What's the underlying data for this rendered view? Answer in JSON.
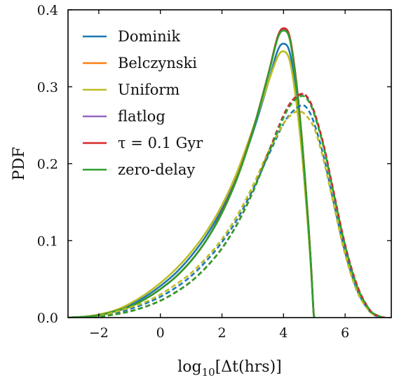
{
  "chart_data": {
    "type": "line",
    "title": "",
    "xlabel": "log10[Δt(hrs)]",
    "ylabel": "PDF",
    "xlim": [
      -3.0,
      7.5
    ],
    "ylim": [
      0.0,
      0.4
    ],
    "xticks": [
      -2,
      0,
      2,
      4,
      6
    ],
    "yticks": [
      0.0,
      0.1,
      0.2,
      0.3,
      0.4
    ],
    "x_tick_labels": [
      "−2",
      "0",
      "2",
      "4",
      "6"
    ],
    "y_tick_labels": [
      "0.0",
      "0.1",
      "0.2",
      "0.3",
      "0.4"
    ],
    "grid": false,
    "legend_position": "upper-left",
    "line_styles": {
      "solid": "solid",
      "dashed": "dashed"
    },
    "legend": [
      {
        "name": "Dominik",
        "color": "#1f77b4"
      },
      {
        "name": "Belczynski",
        "color": "#ff7f0e"
      },
      {
        "name": "Uniform",
        "color": "#bcbd22"
      },
      {
        "name": "flatlog",
        "color": "#9467bd"
      },
      {
        "name": "τ = 0.1 Gyr",
        "color": "#d62728"
      },
      {
        "name": "zero-delay",
        "color": "#2ca02c"
      }
    ],
    "series": [
      {
        "name": "Dominik",
        "style": "solid",
        "color": "#1f77b4",
        "points": [
          [
            -3,
            0
          ],
          [
            -2.5,
            0.001
          ],
          [
            -2,
            0.003
          ],
          [
            -1.5,
            0.008
          ],
          [
            -1,
            0.016
          ],
          [
            -0.5,
            0.027
          ],
          [
            0,
            0.041
          ],
          [
            0.5,
            0.058
          ],
          [
            1,
            0.08
          ],
          [
            1.5,
            0.107
          ],
          [
            2,
            0.141
          ],
          [
            2.5,
            0.184
          ],
          [
            3,
            0.24
          ],
          [
            3.5,
            0.305
          ],
          [
            3.8,
            0.346
          ],
          [
            4,
            0.356
          ],
          [
            4.2,
            0.345
          ],
          [
            4.4,
            0.296
          ],
          [
            4.6,
            0.22
          ],
          [
            4.8,
            0.12
          ],
          [
            4.9,
            0.06
          ],
          [
            4.97,
            0.01
          ],
          [
            5,
            0
          ]
        ]
      },
      {
        "name": "Belczynski",
        "style": "solid",
        "color": "#ff7f0e",
        "points": [
          [
            -3,
            0
          ],
          [
            -2.5,
            0.001
          ],
          [
            -2,
            0.003
          ],
          [
            -1.5,
            0.008
          ],
          [
            -1,
            0.014
          ],
          [
            -0.5,
            0.024
          ],
          [
            0,
            0.037
          ],
          [
            0.5,
            0.053
          ],
          [
            1,
            0.074
          ],
          [
            1.5,
            0.101
          ],
          [
            2,
            0.136
          ],
          [
            2.5,
            0.182
          ],
          [
            3,
            0.242
          ],
          [
            3.5,
            0.315
          ],
          [
            3.8,
            0.362
          ],
          [
            4,
            0.374
          ],
          [
            4.2,
            0.363
          ],
          [
            4.4,
            0.31
          ],
          [
            4.6,
            0.23
          ],
          [
            4.8,
            0.125
          ],
          [
            4.9,
            0.063
          ],
          [
            4.97,
            0.01
          ],
          [
            5,
            0
          ]
        ]
      },
      {
        "name": "Uniform",
        "style": "solid",
        "color": "#bcbd22",
        "points": [
          [
            -3,
            0
          ],
          [
            -2.5,
            0.001
          ],
          [
            -2,
            0.004
          ],
          [
            -1.5,
            0.009
          ],
          [
            -1,
            0.018
          ],
          [
            -0.5,
            0.03
          ],
          [
            0,
            0.045
          ],
          [
            0.5,
            0.063
          ],
          [
            1,
            0.085
          ],
          [
            1.5,
            0.112
          ],
          [
            2,
            0.146
          ],
          [
            2.5,
            0.19
          ],
          [
            3,
            0.245
          ],
          [
            3.5,
            0.305
          ],
          [
            3.8,
            0.338
          ],
          [
            4,
            0.346
          ],
          [
            4.2,
            0.334
          ],
          [
            4.4,
            0.285
          ],
          [
            4.6,
            0.212
          ],
          [
            4.8,
            0.115
          ],
          [
            4.9,
            0.058
          ],
          [
            4.97,
            0.01
          ],
          [
            5,
            0
          ]
        ]
      },
      {
        "name": "flatlog",
        "style": "solid",
        "color": "#9467bd",
        "points": [
          [
            -3,
            0
          ],
          [
            -2.5,
            0.001
          ],
          [
            -2,
            0.003
          ],
          [
            -1.5,
            0.008
          ],
          [
            -1,
            0.014
          ],
          [
            -0.5,
            0.024
          ],
          [
            0,
            0.037
          ],
          [
            0.5,
            0.053
          ],
          [
            1,
            0.074
          ],
          [
            1.5,
            0.101
          ],
          [
            2,
            0.136
          ],
          [
            2.5,
            0.182
          ],
          [
            3,
            0.242
          ],
          [
            3.5,
            0.315
          ],
          [
            3.8,
            0.362
          ],
          [
            4,
            0.374
          ],
          [
            4.2,
            0.363
          ],
          [
            4.4,
            0.31
          ],
          [
            4.6,
            0.23
          ],
          [
            4.8,
            0.125
          ],
          [
            4.9,
            0.063
          ],
          [
            4.97,
            0.01
          ],
          [
            5,
            0
          ]
        ]
      },
      {
        "name": "τ = 0.1 Gyr",
        "style": "solid",
        "color": "#d62728",
        "points": [
          [
            -3,
            0
          ],
          [
            -2.5,
            0.001
          ],
          [
            -2,
            0.003
          ],
          [
            -1.5,
            0.008
          ],
          [
            -1,
            0.014
          ],
          [
            -0.5,
            0.024
          ],
          [
            0,
            0.037
          ],
          [
            0.5,
            0.053
          ],
          [
            1,
            0.074
          ],
          [
            1.5,
            0.101
          ],
          [
            2,
            0.137
          ],
          [
            2.5,
            0.183
          ],
          [
            3,
            0.243
          ],
          [
            3.5,
            0.316
          ],
          [
            3.8,
            0.364
          ],
          [
            4,
            0.376
          ],
          [
            4.2,
            0.365
          ],
          [
            4.4,
            0.312
          ],
          [
            4.6,
            0.231
          ],
          [
            4.8,
            0.126
          ],
          [
            4.9,
            0.063
          ],
          [
            4.97,
            0.01
          ],
          [
            5,
            0
          ]
        ]
      },
      {
        "name": "zero-delay",
        "style": "solid",
        "color": "#2ca02c",
        "points": [
          [
            -3,
            0
          ],
          [
            -2.5,
            0.001
          ],
          [
            -2,
            0.003
          ],
          [
            -1.5,
            0.008
          ],
          [
            -1,
            0.014
          ],
          [
            -0.5,
            0.024
          ],
          [
            0,
            0.037
          ],
          [
            0.5,
            0.053
          ],
          [
            1,
            0.074
          ],
          [
            1.5,
            0.101
          ],
          [
            2,
            0.136
          ],
          [
            2.5,
            0.182
          ],
          [
            3,
            0.242
          ],
          [
            3.5,
            0.315
          ],
          [
            3.8,
            0.362
          ],
          [
            4,
            0.373
          ],
          [
            4.2,
            0.362
          ],
          [
            4.4,
            0.309
          ],
          [
            4.6,
            0.229
          ],
          [
            4.8,
            0.124
          ],
          [
            4.9,
            0.062
          ],
          [
            4.97,
            0.01
          ],
          [
            5,
            0
          ]
        ]
      },
      {
        "name": "Dominik",
        "style": "dashed",
        "color": "#1f77b4",
        "points": [
          [
            -2.2,
            0
          ],
          [
            -1.5,
            0.006
          ],
          [
            -1,
            0.011
          ],
          [
            -0.5,
            0.018
          ],
          [
            0,
            0.027
          ],
          [
            0.5,
            0.039
          ],
          [
            1,
            0.054
          ],
          [
            1.5,
            0.074
          ],
          [
            2,
            0.098
          ],
          [
            2.5,
            0.128
          ],
          [
            3,
            0.166
          ],
          [
            3.5,
            0.21
          ],
          [
            4,
            0.252
          ],
          [
            4.3,
            0.268
          ],
          [
            4.6,
            0.276
          ],
          [
            4.8,
            0.27
          ],
          [
            5,
            0.252
          ],
          [
            5.3,
            0.21
          ],
          [
            5.6,
            0.155
          ],
          [
            6,
            0.085
          ],
          [
            6.4,
            0.035
          ],
          [
            6.8,
            0.008
          ],
          [
            7.1,
            0.001
          ],
          [
            7.3,
            0
          ]
        ]
      },
      {
        "name": "Belczynski",
        "style": "dashed",
        "color": "#ff7f0e",
        "points": [
          [
            -2.2,
            0
          ],
          [
            -1.5,
            0.004
          ],
          [
            -1,
            0.008
          ],
          [
            -0.5,
            0.014
          ],
          [
            0,
            0.022
          ],
          [
            0.5,
            0.033
          ],
          [
            1,
            0.047
          ],
          [
            1.5,
            0.066
          ],
          [
            2,
            0.09
          ],
          [
            2.5,
            0.122
          ],
          [
            3,
            0.163
          ],
          [
            3.5,
            0.213
          ],
          [
            4,
            0.262
          ],
          [
            4.3,
            0.282
          ],
          [
            4.6,
            0.29
          ],
          [
            4.8,
            0.284
          ],
          [
            5,
            0.266
          ],
          [
            5.3,
            0.224
          ],
          [
            5.6,
            0.168
          ],
          [
            6,
            0.094
          ],
          [
            6.4,
            0.04
          ],
          [
            6.8,
            0.01
          ],
          [
            7.1,
            0.002
          ],
          [
            7.3,
            0
          ]
        ]
      },
      {
        "name": "Uniform",
        "style": "dashed",
        "color": "#bcbd22",
        "points": [
          [
            -2.2,
            0
          ],
          [
            -1.5,
            0.007
          ],
          [
            -1,
            0.013
          ],
          [
            -0.5,
            0.02
          ],
          [
            0,
            0.03
          ],
          [
            0.5,
            0.043
          ],
          [
            1,
            0.058
          ],
          [
            1.5,
            0.078
          ],
          [
            2,
            0.102
          ],
          [
            2.5,
            0.133
          ],
          [
            3,
            0.171
          ],
          [
            3.5,
            0.215
          ],
          [
            4,
            0.252
          ],
          [
            4.3,
            0.265
          ],
          [
            4.5,
            0.268
          ],
          [
            4.7,
            0.264
          ],
          [
            5,
            0.246
          ],
          [
            5.3,
            0.205
          ],
          [
            5.6,
            0.152
          ],
          [
            6,
            0.082
          ],
          [
            6.4,
            0.033
          ],
          [
            6.8,
            0.008
          ],
          [
            7.1,
            0.001
          ],
          [
            7.3,
            0
          ]
        ]
      },
      {
        "name": "flatlog",
        "style": "dashed",
        "color": "#9467bd",
        "points": [
          [
            -2.2,
            0
          ],
          [
            -1.5,
            0.004
          ],
          [
            -1,
            0.008
          ],
          [
            -0.5,
            0.014
          ],
          [
            0,
            0.022
          ],
          [
            0.5,
            0.033
          ],
          [
            1,
            0.047
          ],
          [
            1.5,
            0.066
          ],
          [
            2,
            0.09
          ],
          [
            2.5,
            0.122
          ],
          [
            3,
            0.163
          ],
          [
            3.5,
            0.213
          ],
          [
            4,
            0.262
          ],
          [
            4.3,
            0.282
          ],
          [
            4.6,
            0.29
          ],
          [
            4.8,
            0.284
          ],
          [
            5,
            0.266
          ],
          [
            5.3,
            0.224
          ],
          [
            5.6,
            0.168
          ],
          [
            6,
            0.094
          ],
          [
            6.4,
            0.04
          ],
          [
            6.8,
            0.01
          ],
          [
            7.1,
            0.002
          ],
          [
            7.3,
            0
          ]
        ]
      },
      {
        "name": "τ = 0.1 Gyr",
        "style": "dashed",
        "color": "#d62728",
        "points": [
          [
            -2.2,
            0
          ],
          [
            -1.5,
            0.004
          ],
          [
            -1,
            0.008
          ],
          [
            -0.5,
            0.014
          ],
          [
            0,
            0.022
          ],
          [
            0.5,
            0.033
          ],
          [
            1,
            0.047
          ],
          [
            1.5,
            0.066
          ],
          [
            2,
            0.09
          ],
          [
            2.5,
            0.122
          ],
          [
            3,
            0.163
          ],
          [
            3.5,
            0.214
          ],
          [
            4,
            0.263
          ],
          [
            4.3,
            0.283
          ],
          [
            4.6,
            0.291
          ],
          [
            4.8,
            0.285
          ],
          [
            5,
            0.267
          ],
          [
            5.3,
            0.225
          ],
          [
            5.6,
            0.169
          ],
          [
            6,
            0.095
          ],
          [
            6.4,
            0.041
          ],
          [
            6.8,
            0.01
          ],
          [
            7.1,
            0.002
          ],
          [
            7.3,
            0
          ]
        ]
      },
      {
        "name": "zero-delay",
        "style": "dashed",
        "color": "#2ca02c",
        "points": [
          [
            -2.2,
            0
          ],
          [
            -1.5,
            0.004
          ],
          [
            -1,
            0.008
          ],
          [
            -0.5,
            0.014
          ],
          [
            0,
            0.022
          ],
          [
            0.5,
            0.033
          ],
          [
            1,
            0.047
          ],
          [
            1.5,
            0.066
          ],
          [
            2,
            0.09
          ],
          [
            2.5,
            0.122
          ],
          [
            3,
            0.163
          ],
          [
            3.5,
            0.212
          ],
          [
            4,
            0.26
          ],
          [
            4.3,
            0.28
          ],
          [
            4.6,
            0.288
          ],
          [
            4.8,
            0.282
          ],
          [
            5,
            0.264
          ],
          [
            5.3,
            0.222
          ],
          [
            5.6,
            0.166
          ],
          [
            6,
            0.093
          ],
          [
            6.4,
            0.039
          ],
          [
            6.8,
            0.01
          ],
          [
            7.1,
            0.002
          ],
          [
            7.3,
            0
          ]
        ]
      }
    ]
  }
}
